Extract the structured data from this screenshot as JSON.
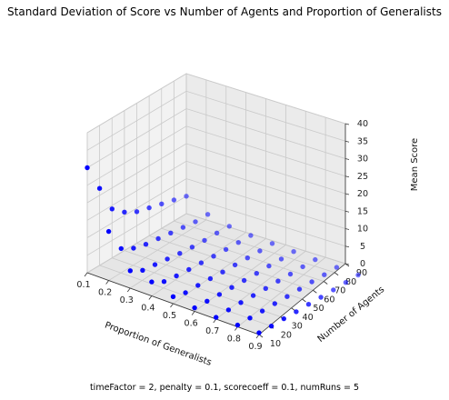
{
  "chart_data": {
    "type": "scatter",
    "title": "Standard Deviation of Score vs Number of Agents and Proportion of Generalists",
    "xlabel": "Proportion of Generalists",
    "ylabel": "Number of Agents",
    "zlabel": "Mean Score",
    "caption": "timeFactor = 2, penalty = 0.1, scorecoeff = 0.1, numRuns = 5",
    "x_ticks": [
      "0.1",
      "0.2",
      "0.3",
      "0.4",
      "0.5",
      "0.6",
      "0.7",
      "0.8",
      "0.9"
    ],
    "y_ticks": [
      "10",
      "20",
      "30",
      "40",
      "50",
      "60",
      "70",
      "80",
      "90"
    ],
    "z_ticks": [
      "0",
      "5",
      "10",
      "15",
      "20",
      "25",
      "30",
      "35",
      "40"
    ],
    "xlim": [
      0.1,
      0.9
    ],
    "ylim": [
      10,
      90
    ],
    "zlim": [
      0,
      40
    ],
    "grid": true,
    "marker_color": "#0000ff",
    "x": [
      0.1,
      0.2,
      0.3,
      0.4,
      0.5,
      0.6,
      0.7,
      0.8,
      0.9
    ],
    "y": [
      10,
      20,
      30,
      40,
      50,
      60,
      70,
      80,
      90
    ],
    "z_rows": [
      [
        30,
        14,
        5,
        4,
        2,
        1,
        0.5,
        0.5,
        0.5
      ],
      [
        22,
        7,
        3,
        2,
        1,
        0.8,
        0.5,
        0.4,
        0.3
      ],
      [
        14,
        5,
        2.5,
        1.5,
        1,
        0.6,
        0.5,
        0.3,
        0.3
      ],
      [
        11,
        4,
        2,
        1.2,
        0.8,
        0.5,
        0.4,
        0.3,
        0.2
      ],
      [
        9,
        3.5,
        1.5,
        1,
        0.6,
        0.4,
        0.3,
        0.2,
        0.2
      ],
      [
        8,
        3,
        1.2,
        0.8,
        0.5,
        0.3,
        0.3,
        0.2,
        0.1
      ],
      [
        7,
        2.5,
        1,
        0.6,
        0.4,
        0.3,
        0.2,
        0.2,
        0.1
      ],
      [
        6,
        2,
        1,
        0.5,
        0.3,
        0.2,
        0.2,
        0.1,
        0.1
      ],
      [
        5,
        2,
        0.8,
        0.4,
        0.3,
        0.2,
        0.1,
        0.1,
        0.1
      ]
    ]
  }
}
